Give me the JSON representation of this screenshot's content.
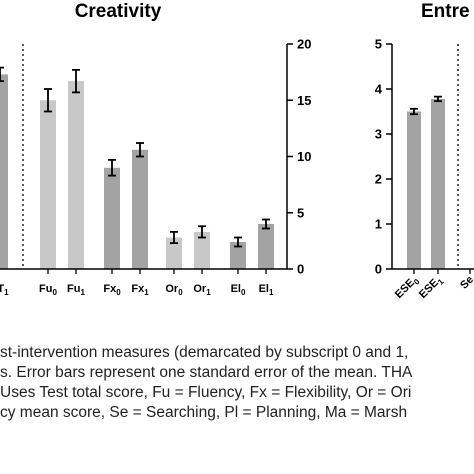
{
  "chart_data": [
    {
      "type": "bar",
      "title": "Creativity",
      "categories": [
        "T1",
        "Fu0",
        "Fu1",
        "Fx0",
        "Fx1",
        "Or0",
        "Or1",
        "El0",
        "El1"
      ],
      "category_labels": [
        {
          "base": "T",
          "sub": "1"
        },
        {
          "base": "Fu",
          "sub": "0"
        },
        {
          "base": "Fu",
          "sub": "1"
        },
        {
          "base": "Fx",
          "sub": "0"
        },
        {
          "base": "Fx",
          "sub": "1"
        },
        {
          "base": "Or",
          "sub": "0"
        },
        {
          "base": "Or",
          "sub": "1"
        },
        {
          "base": "El",
          "sub": "0"
        },
        {
          "base": "El",
          "sub": "1"
        }
      ],
      "values": [
        17.3,
        15.0,
        16.7,
        9.0,
        10.6,
        2.8,
        3.3,
        2.4,
        4.0
      ],
      "errors": [
        0.6,
        1.0,
        1.0,
        0.7,
        0.6,
        0.5,
        0.5,
        0.4,
        0.4
      ],
      "colors": [
        "#a3a3a3",
        "#c8c8c8",
        "#c8c8c8",
        "#a3a3a3",
        "#a3a3a3",
        "#c8c8c8",
        "#c8c8c8",
        "#a3a3a3",
        "#a3a3a3"
      ],
      "ylim": [
        0,
        20
      ],
      "yticks": [
        0,
        5,
        10,
        15,
        20
      ],
      "yaxis_position": "right",
      "grid": false
    },
    {
      "type": "bar",
      "title": "Entre",
      "categories": [
        "ESE0",
        "ESE1",
        "Se"
      ],
      "category_labels": [
        {
          "base": "ESE",
          "sub": "0"
        },
        {
          "base": "ESE",
          "sub": "1"
        },
        {
          "base": "Se",
          "sub": ""
        }
      ],
      "values": [
        3.5,
        3.78,
        null
      ],
      "errors": [
        0.06,
        0.05,
        null
      ],
      "colors": [
        "#a3a3a3",
        "#a3a3a3",
        "#a3a3a3"
      ],
      "ylim": [
        0,
        5
      ],
      "yticks": [
        0,
        1,
        2,
        3,
        4,
        5
      ],
      "yaxis_position": "left",
      "grid": false
    }
  ],
  "caption": {
    "lines": [
      "st-intervention measures (demarcated by subscript 0 and 1,",
      "s. Error bars represent one standard error of the mean. THA",
      "Uses Test total score, Fu = Fluency, Fx = Flexibility, Or = Ori",
      " cy mean score, Se = Searching, Pl = Planning, Ma = Marsh"
    ]
  }
}
